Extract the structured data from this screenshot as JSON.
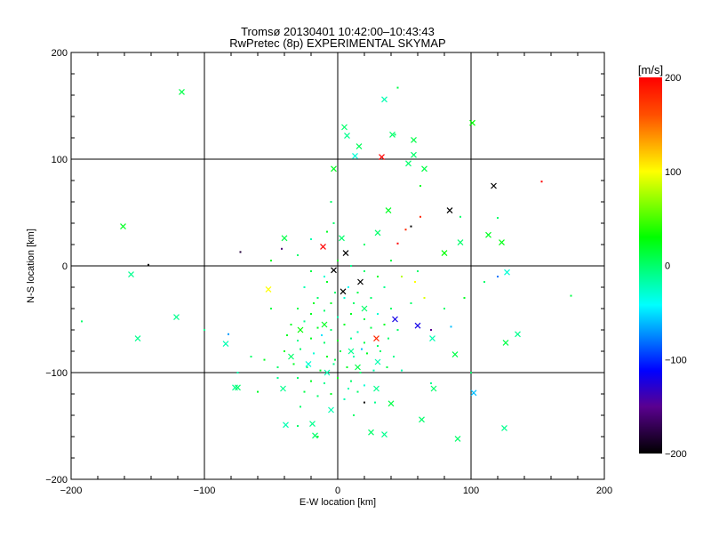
{
  "chart_data": {
    "type": "scatter",
    "title": "Tromsø 20130401 10:42:00–10:43:43",
    "subtitle": "RwPretec (8p) EXPERIMENTAL SKYMAP",
    "xlabel": "E-W location [km]",
    "ylabel": "N-S location [km]",
    "xlim": [
      -200,
      200
    ],
    "ylim": [
      -200,
      200
    ],
    "xticks": [
      "−200",
      "−100",
      "0",
      "100",
      "200"
    ],
    "yticks": [
      "−200",
      "−100",
      "0",
      "100",
      "200"
    ],
    "tick_values": [
      -200,
      -100,
      0,
      100,
      200
    ],
    "grid": true,
    "colorbar": {
      "label": "[m/s]",
      "range": [
        -200,
        200
      ],
      "ticks": [
        "200",
        "100",
        "0",
        "−100",
        "−200"
      ],
      "tick_values": [
        200,
        100,
        0,
        -100,
        -200
      ],
      "stops": [
        {
          "v": -200,
          "color": "#000000"
        },
        {
          "v": -150,
          "color": "#5a0090"
        },
        {
          "v": -112,
          "color": "#0000ff"
        },
        {
          "v": -42,
          "color": "#00ffff"
        },
        {
          "v": 30,
          "color": "#00ff00"
        },
        {
          "v": 100,
          "color": "#ffff00"
        },
        {
          "v": 160,
          "color": "#ff5000"
        },
        {
          "v": 200,
          "color": "#ff0000"
        }
      ]
    },
    "crosses": [
      [
        -117,
        163,
        10
      ],
      [
        35,
        156,
        -20
      ],
      [
        5,
        130,
        0
      ],
      [
        7,
        122,
        -10
      ],
      [
        16,
        112,
        5
      ],
      [
        101,
        134,
        30
      ],
      [
        41,
        123,
        0
      ],
      [
        57,
        118,
        10
      ],
      [
        33,
        102,
        200
      ],
      [
        57,
        104,
        0
      ],
      [
        13,
        103,
        -30
      ],
      [
        53,
        96,
        0
      ],
      [
        65,
        91,
        10
      ],
      [
        -3,
        91,
        20
      ],
      [
        117,
        75,
        -200
      ],
      [
        84,
        52,
        -200
      ],
      [
        38,
        52,
        20
      ],
      [
        113,
        29,
        20
      ],
      [
        123,
        22,
        25
      ],
      [
        92,
        22,
        0
      ],
      [
        80,
        12,
        30
      ],
      [
        -161,
        37,
        20
      ],
      [
        -155,
        -8,
        -10
      ],
      [
        -40,
        26,
        10
      ],
      [
        -11,
        18,
        200
      ],
      [
        6,
        12,
        -200
      ],
      [
        3,
        26,
        0
      ],
      [
        30,
        31,
        0
      ],
      [
        -3,
        -4,
        -200
      ],
      [
        4,
        -24,
        -200
      ],
      [
        17,
        -15,
        -200
      ],
      [
        -52,
        -22,
        100
      ],
      [
        -150,
        -68,
        -10
      ],
      [
        -121,
        -48,
        -10
      ],
      [
        -84,
        -73,
        -20
      ],
      [
        43,
        -50,
        -120
      ],
      [
        60,
        -56,
        -120
      ],
      [
        71,
        -68,
        -20
      ],
      [
        29,
        -68,
        180
      ],
      [
        88,
        -83,
        10
      ],
      [
        126,
        -72,
        10
      ],
      [
        135,
        -64,
        -10
      ],
      [
        127,
        -6,
        -30
      ],
      [
        102,
        -119,
        -60
      ],
      [
        72,
        -115,
        0
      ],
      [
        29,
        -115,
        -10
      ],
      [
        40,
        -129,
        10
      ],
      [
        63,
        -144,
        0
      ],
      [
        90,
        -162,
        0
      ],
      [
        125,
        -152,
        -10
      ],
      [
        -77,
        -114,
        -10
      ],
      [
        -75,
        -114,
        0
      ],
      [
        -41,
        -115,
        -10
      ],
      [
        -39,
        -149,
        -20
      ],
      [
        -19,
        -148,
        -10
      ],
      [
        -17,
        -159,
        0
      ],
      [
        25,
        -156,
        0
      ],
      [
        35,
        -158,
        -10
      ],
      [
        -5,
        -135,
        -20
      ],
      [
        -22,
        -92,
        -30
      ],
      [
        -10,
        -55,
        20
      ],
      [
        20,
        -40,
        0
      ],
      [
        -28,
        -60,
        30
      ],
      [
        10,
        -80,
        -10
      ],
      [
        -8,
        -100,
        -20
      ],
      [
        15,
        -95,
        10
      ],
      [
        -35,
        -85,
        0
      ],
      [
        30,
        -90,
        -20
      ]
    ],
    "dots": [
      [
        -142,
        1,
        -200
      ],
      [
        -73,
        13,
        -180
      ],
      [
        -42,
        16,
        -160
      ],
      [
        55,
        37,
        -200
      ],
      [
        62,
        46,
        180
      ],
      [
        153,
        79,
        200
      ],
      [
        51,
        34,
        180
      ],
      [
        45,
        21,
        200
      ],
      [
        -192,
        -52,
        0
      ],
      [
        175,
        -28,
        10
      ],
      [
        -55,
        -88,
        20
      ],
      [
        -60,
        -118,
        20
      ],
      [
        -82,
        -64,
        -70
      ],
      [
        48,
        -10,
        80
      ],
      [
        58,
        -15,
        100
      ],
      [
        65,
        -30,
        90
      ],
      [
        70,
        -60,
        -150
      ],
      [
        85,
        -57,
        -60
      ],
      [
        -65,
        -85,
        0
      ],
      [
        -45,
        -105,
        -10
      ],
      [
        20,
        -128,
        -200
      ],
      [
        110,
        -15,
        0
      ],
      [
        120,
        -10,
        -80
      ],
      [
        -30,
        10,
        0
      ],
      [
        -20,
        -5,
        10
      ],
      [
        -10,
        -10,
        -30
      ],
      [
        0,
        5,
        20
      ],
      [
        10,
        0,
        -10
      ],
      [
        20,
        -5,
        0
      ],
      [
        30,
        -10,
        20
      ],
      [
        -25,
        -20,
        -20
      ],
      [
        -15,
        -30,
        0
      ],
      [
        -5,
        -35,
        20
      ],
      [
        5,
        -30,
        -30
      ],
      [
        15,
        -25,
        10
      ],
      [
        25,
        -30,
        0
      ],
      [
        35,
        -20,
        -10
      ],
      [
        -30,
        -40,
        10
      ],
      [
        -20,
        -45,
        20
      ],
      [
        -10,
        -42,
        0
      ],
      [
        0,
        -48,
        -20
      ],
      [
        10,
        -45,
        20
      ],
      [
        20,
        -50,
        10
      ],
      [
        30,
        -45,
        -30
      ],
      [
        40,
        -40,
        0
      ],
      [
        -35,
        -55,
        20
      ],
      [
        -25,
        -52,
        -10
      ],
      [
        -15,
        -58,
        20
      ],
      [
        -5,
        -60,
        0
      ],
      [
        5,
        -55,
        20
      ],
      [
        15,
        -62,
        -20
      ],
      [
        25,
        -58,
        10
      ],
      [
        35,
        -55,
        20
      ],
      [
        45,
        -60,
        0
      ],
      [
        -30,
        -70,
        -10
      ],
      [
        -20,
        -68,
        20
      ],
      [
        -10,
        -72,
        0
      ],
      [
        0,
        -70,
        20
      ],
      [
        10,
        -68,
        -10
      ],
      [
        20,
        -72,
        10
      ],
      [
        30,
        -75,
        0
      ],
      [
        -40,
        -80,
        20
      ],
      [
        -28,
        -78,
        0
      ],
      [
        -18,
        -82,
        -30
      ],
      [
        -8,
        -85,
        20
      ],
      [
        2,
        -80,
        10
      ],
      [
        12,
        -85,
        -20
      ],
      [
        22,
        -82,
        20
      ],
      [
        32,
        -80,
        0
      ],
      [
        42,
        -85,
        -10
      ],
      [
        -33,
        -92,
        20
      ],
      [
        -23,
        -95,
        0
      ],
      [
        -13,
        -98,
        20
      ],
      [
        -3,
        -92,
        -10
      ],
      [
        7,
        -95,
        20
      ],
      [
        17,
        -100,
        0
      ],
      [
        27,
        -98,
        -20
      ],
      [
        37,
        -95,
        10
      ],
      [
        -30,
        -105,
        0
      ],
      [
        -20,
        -108,
        20
      ],
      [
        -10,
        -110,
        -10
      ],
      [
        0,
        -105,
        20
      ],
      [
        10,
        -108,
        0
      ],
      [
        20,
        -112,
        -30
      ],
      [
        -25,
        -118,
        10
      ],
      [
        -15,
        -122,
        0
      ],
      [
        -5,
        -120,
        20
      ],
      [
        5,
        -125,
        -20
      ],
      [
        15,
        -118,
        0
      ],
      [
        -8,
        -15,
        20
      ],
      [
        -2,
        -25,
        0
      ],
      [
        8,
        -20,
        -40
      ],
      [
        -18,
        -35,
        20
      ],
      [
        12,
        -35,
        0
      ],
      [
        -12,
        -65,
        -50
      ],
      [
        18,
        -78,
        -60
      ],
      [
        -2,
        -88,
        10
      ],
      [
        8,
        -115,
        -20
      ],
      [
        -38,
        -65,
        20
      ],
      [
        38,
        -68,
        0
      ],
      [
        -45,
        -95,
        0
      ],
      [
        48,
        -98,
        -20
      ],
      [
        -28,
        -132,
        0
      ],
      [
        28,
        -128,
        -10
      ],
      [
        -50,
        -40,
        10
      ],
      [
        55,
        -35,
        0
      ],
      [
        -3,
        40,
        0
      ],
      [
        -8,
        32,
        20
      ],
      [
        20,
        20,
        0
      ],
      [
        -20,
        25,
        -20
      ],
      [
        40,
        5,
        10
      ],
      [
        60,
        -5,
        0
      ],
      [
        -50,
        5,
        20
      ],
      [
        80,
        -40,
        0
      ],
      [
        95,
        -30,
        20
      ],
      [
        -100,
        -60,
        -10
      ],
      [
        -75,
        -100,
        -20
      ],
      [
        100,
        -100,
        0
      ],
      [
        70,
        -110,
        -10
      ],
      [
        -15,
        -160,
        20
      ],
      [
        12,
        -140,
        0
      ],
      [
        45,
        167,
        10
      ],
      [
        43,
        123,
        0
      ],
      [
        62,
        75,
        20
      ],
      [
        -5,
        60,
        0
      ],
      [
        92,
        46,
        0
      ],
      [
        120,
        45,
        0
      ],
      [
        -30,
        -150,
        0
      ]
    ]
  }
}
